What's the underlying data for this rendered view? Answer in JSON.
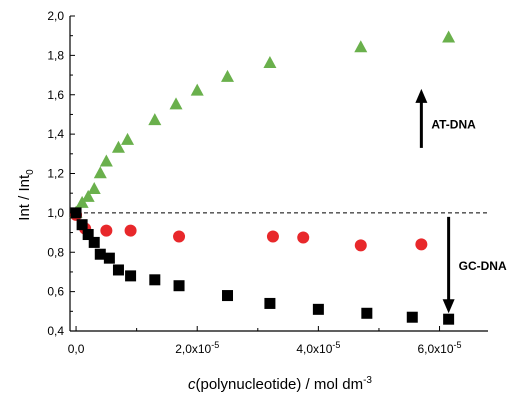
{
  "chart_data": {
    "type": "scatter",
    "xlabel_italic": "c",
    "xlabel_rest": "(polynucleotide) / mol dm",
    "xlabel_sup": "-3",
    "ylabel_main": "Int / Int",
    "ylabel_sub": "0",
    "xlim": [
      -1e-06,
      6.8e-05
    ],
    "ylim": [
      0.4,
      2.0
    ],
    "y_ticks": [
      0.4,
      0.6,
      0.8,
      1.0,
      1.2,
      1.4,
      1.6,
      1.8,
      2.0
    ],
    "y_tick_labels": [
      "0,4",
      "0,6",
      "0,8",
      "1,0",
      "1,2",
      "1,4",
      "1,6",
      "1,8",
      "2,0"
    ],
    "x_ticks": [
      0,
      2e-05,
      4e-05,
      6e-05
    ],
    "x_tick_labels": [
      {
        "mant": "0,0",
        "exp": ""
      },
      {
        "mant": "2,0x10",
        "exp": "-5"
      },
      {
        "mant": "4,0x10",
        "exp": "-5"
      },
      {
        "mant": "6,0x10",
        "exp": "-5"
      }
    ],
    "reference_line": {
      "y": 1.0,
      "style": "dashed"
    },
    "grid": false,
    "series": [
      {
        "marker": "triangle",
        "color": "#6ab04c",
        "x": [
          0,
          1e-06,
          2e-06,
          3e-06,
          4e-06,
          5e-06,
          7e-06,
          8.5e-06,
          1.3e-05,
          1.65e-05,
          2e-05,
          2.5e-05,
          3.2e-05,
          4.7e-05,
          6.15e-05
        ],
        "y": [
          1.0,
          1.05,
          1.08,
          1.12,
          1.2,
          1.26,
          1.33,
          1.37,
          1.47,
          1.55,
          1.62,
          1.69,
          1.76,
          1.84,
          1.89
        ]
      },
      {
        "marker": "circle",
        "color": "#e8282b",
        "x": [
          0,
          1.5e-06,
          5e-06,
          9e-06,
          1.7e-05,
          3.25e-05,
          3.75e-05,
          4.7e-05,
          5.7e-05
        ],
        "y": [
          0.99,
          0.92,
          0.91,
          0.91,
          0.88,
          0.88,
          0.875,
          0.835,
          0.84
        ]
      },
      {
        "marker": "square",
        "color": "#000000",
        "x": [
          0,
          1e-06,
          2e-06,
          3e-06,
          4e-06,
          5.5e-06,
          7e-06,
          9e-06,
          1.3e-05,
          1.7e-05,
          2.5e-05,
          3.2e-05,
          4e-05,
          4.8e-05,
          5.55e-05,
          6.15e-05
        ],
        "y": [
          1.0,
          0.94,
          0.89,
          0.85,
          0.79,
          0.77,
          0.71,
          0.68,
          0.66,
          0.63,
          0.58,
          0.54,
          0.51,
          0.49,
          0.47,
          0.46
        ]
      }
    ],
    "annotations": [
      {
        "text": "AT-DNA",
        "direction": "up",
        "x": 5.7e-05,
        "y_from": 1.33,
        "y_to": 1.63,
        "label_y": 1.45
      },
      {
        "text": "GC-DNA",
        "direction": "down",
        "x": 6.15e-05,
        "y_from": 0.98,
        "y_to": 0.49,
        "label_y": 0.73
      }
    ]
  }
}
